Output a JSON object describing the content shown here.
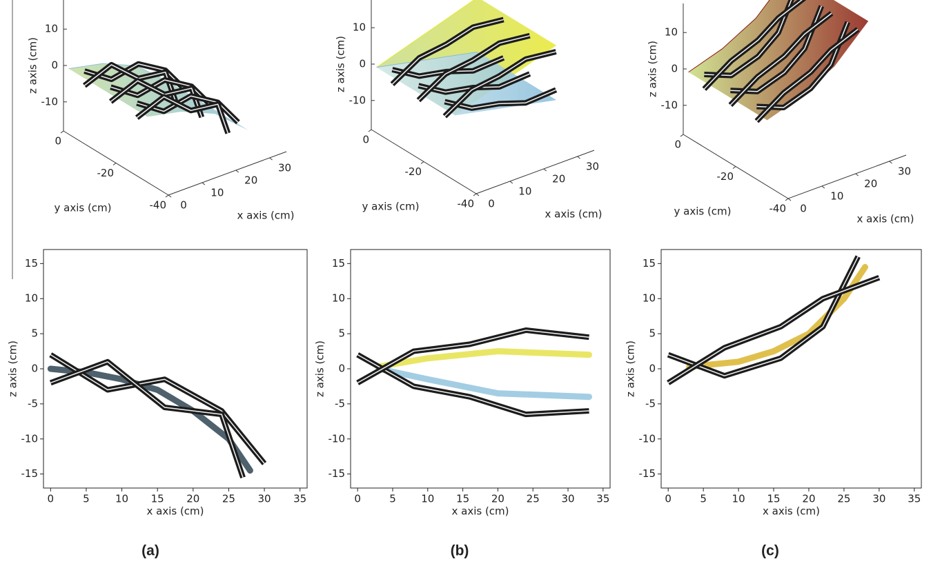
{
  "chart_data": [
    {
      "type": "surface3d",
      "zlabel": "z axis (cm)",
      "ylabel": "y axis (cm)",
      "xlabel": "x axis (cm)",
      "xlim": [
        0,
        35
      ],
      "ylim": [
        -40,
        0
      ],
      "zlim": [
        -18,
        18
      ],
      "xticks": [
        0,
        10,
        20,
        30
      ],
      "yticks": [
        0,
        -20,
        -40
      ],
      "zticks": [
        -10,
        0,
        10
      ],
      "series": [
        {
          "colors": [
            "#c6dea0",
            "#8ec0dc"
          ],
          "x": [
            0,
            10,
            20,
            30
          ],
          "values": [
            0,
            -2,
            -6,
            -14
          ]
        }
      ]
    },
    {
      "type": "surface3d",
      "zlabel": "z axis (cm)",
      "ylabel": "y axis (cm)",
      "xlabel": "x axis (cm)",
      "xlim": [
        0,
        35
      ],
      "ylim": [
        -40,
        0
      ],
      "zlim": [
        -18,
        18
      ],
      "xticks": [
        0,
        10,
        20,
        30
      ],
      "yticks": [
        0,
        -20,
        -40
      ],
      "zticks": [
        -10,
        0,
        10
      ],
      "series": [
        {
          "colors": [
            "#c6dc90",
            "#e8e830"
          ],
          "x": [
            0,
            10,
            20,
            30
          ],
          "values": [
            0,
            3,
            6,
            9
          ]
        },
        {
          "colors": [
            "#d8ecf4",
            "#86bcd8"
          ],
          "x": [
            0,
            10,
            20,
            30
          ],
          "values": [
            0,
            -2,
            -4,
            -6
          ]
        }
      ]
    },
    {
      "type": "surface3d",
      "zlabel": "z axis (cm)",
      "ylabel": "y axis (cm)",
      "xlabel": "x axis (cm)",
      "xlim": [
        0,
        35
      ],
      "ylim": [
        -40,
        0
      ],
      "zlim": [
        -18,
        18
      ],
      "xticks": [
        0,
        10,
        20,
        30
      ],
      "yticks": [
        0,
        -20,
        -40
      ],
      "zticks": [
        -10,
        0,
        10
      ],
      "series": [
        {
          "colors": [
            "#c8dc80",
            "#8a1a10"
          ],
          "x": [
            0,
            10,
            20,
            30
          ],
          "values": [
            0,
            3,
            8,
            17
          ]
        }
      ]
    },
    {
      "type": "line",
      "xlabel": "x axis (cm)",
      "ylabel": "z axis (cm)",
      "xlim": [
        -1,
        36
      ],
      "ylim": [
        -17,
        17
      ],
      "xticks": [
        0,
        5,
        10,
        15,
        20,
        25,
        30,
        35
      ],
      "yticks": [
        -15,
        -10,
        -5,
        0,
        5,
        10,
        15
      ],
      "series": [
        {
          "color": "#223a48",
          "x": [
            0,
            5,
            10,
            15,
            20,
            25,
            28
          ],
          "values": [
            0,
            -0.5,
            -1.5,
            -3,
            -6,
            -10,
            -14.5
          ]
        },
        {
          "color": "#222222",
          "x": [
            0,
            8,
            16,
            24,
            30
          ],
          "values": [
            2,
            -3,
            -1.5,
            -6,
            -13.5
          ]
        },
        {
          "color": "#222222",
          "x": [
            0,
            8,
            16,
            24,
            27
          ],
          "values": [
            -2,
            1,
            -5.5,
            -6.5,
            -15.5
          ]
        }
      ]
    },
    {
      "type": "line",
      "xlabel": "x axis (cm)",
      "ylabel": "z axis (cm)",
      "xlim": [
        -1,
        36
      ],
      "ylim": [
        -17,
        17
      ],
      "xticks": [
        0,
        5,
        10,
        15,
        20,
        25,
        30,
        35
      ],
      "yticks": [
        -15,
        -10,
        -5,
        0,
        5,
        10,
        15
      ],
      "series": [
        {
          "color": "#e4e040",
          "x": [
            3,
            10,
            20,
            33
          ],
          "values": [
            0.3,
            1.5,
            2.5,
            2
          ]
        },
        {
          "color": "#8cc0dc",
          "x": [
            3,
            10,
            20,
            33
          ],
          "values": [
            0,
            -1.5,
            -3.5,
            -4
          ]
        },
        {
          "color": "#222222",
          "x": [
            0,
            8,
            16,
            24,
            33
          ],
          "values": [
            2,
            -2.5,
            -4,
            -6.5,
            -6
          ]
        },
        {
          "color": "#222222",
          "x": [
            0,
            8,
            16,
            24,
            33
          ],
          "values": [
            -2,
            2.5,
            3.5,
            5.5,
            4.5
          ]
        }
      ]
    },
    {
      "type": "line",
      "xlabel": "x axis (cm)",
      "ylabel": "z axis (cm)",
      "xlim": [
        -1,
        36
      ],
      "ylim": [
        -17,
        17
      ],
      "xticks": [
        0,
        5,
        10,
        15,
        20,
        25,
        30,
        35
      ],
      "yticks": [
        -15,
        -10,
        -5,
        0,
        5,
        10,
        15
      ],
      "series": [
        {
          "color": "#d8b020",
          "x": [
            3,
            10,
            15,
            20,
            25,
            28
          ],
          "values": [
            0.3,
            1,
            2.5,
            5,
            10,
            14.5
          ]
        },
        {
          "color": "#222222",
          "x": [
            0,
            8,
            16,
            22,
            27
          ],
          "values": [
            2,
            -1,
            1.5,
            6,
            16
          ]
        },
        {
          "color": "#222222",
          "x": [
            0,
            8,
            16,
            22,
            30
          ],
          "values": [
            -2,
            3,
            6,
            10,
            13
          ]
        }
      ]
    }
  ],
  "figure": {
    "captions": [
      "(a)",
      "(b)",
      "(c)"
    ]
  }
}
